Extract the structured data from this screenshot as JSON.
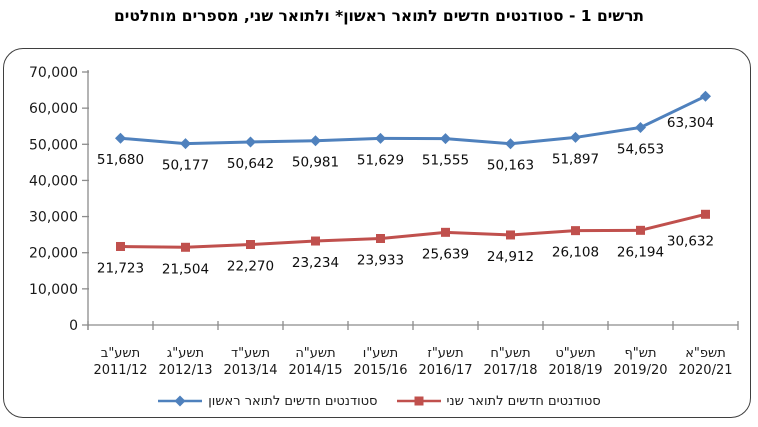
{
  "title": "תרשים 1 - סטודנטים חדשים לתואר ראשון* ולתואר שני, מספרים מוחלטים",
  "colors": {
    "first_degree_series": "#4F81BD",
    "second_degree_series": "#C0504D",
    "axis": "#8c8c8c",
    "frame_border": "#3f3f3f",
    "text": "#1a1a1a",
    "background": "#ffffff"
  },
  "chart_data": {
    "type": "line",
    "title": "תרשים 1 - סטודנטים חדשים לתואר ראשון* ולתואר שני, מספרים מוחלטים",
    "categories": [
      {
        "hebrew_year": "תשע\"ב",
        "gregorian_year": "2011/12"
      },
      {
        "hebrew_year": "תשע\"ג",
        "gregorian_year": "2012/13"
      },
      {
        "hebrew_year": "תשע\"ד",
        "gregorian_year": "2013/14"
      },
      {
        "hebrew_year": "תשע\"ה",
        "gregorian_year": "2014/15"
      },
      {
        "hebrew_year": "תשע\"ו",
        "gregorian_year": "2015/16"
      },
      {
        "hebrew_year": "תשע\"ז",
        "gregorian_year": "2016/17"
      },
      {
        "hebrew_year": "תשע\"ח",
        "gregorian_year": "2017/18"
      },
      {
        "hebrew_year": "תשע\"ט",
        "gregorian_year": "2018/19"
      },
      {
        "hebrew_year": "תש\"ף",
        "gregorian_year": "2019/20"
      },
      {
        "hebrew_year": "תשפ\"א",
        "gregorian_year": "2020/21"
      }
    ],
    "series": [
      {
        "name": "סטודנטים חדשים לתואר ראשון",
        "marker": "diamond",
        "color": "#4F81BD",
        "values": [
          51680,
          50177,
          50642,
          50981,
          51629,
          51555,
          50163,
          51897,
          54653,
          63304
        ]
      },
      {
        "name": "סטודנטים חדשים לתואר שני",
        "marker": "square",
        "color": "#C0504D",
        "values": [
          21723,
          21504,
          22270,
          23234,
          23933,
          25639,
          24912,
          26108,
          26194,
          30632
        ]
      }
    ],
    "ylim": [
      0,
      70000
    ],
    "ytick_step": 10000,
    "grid": false,
    "data_labels": "below",
    "legend_position": "bottom",
    "number_format": "#,##0"
  }
}
